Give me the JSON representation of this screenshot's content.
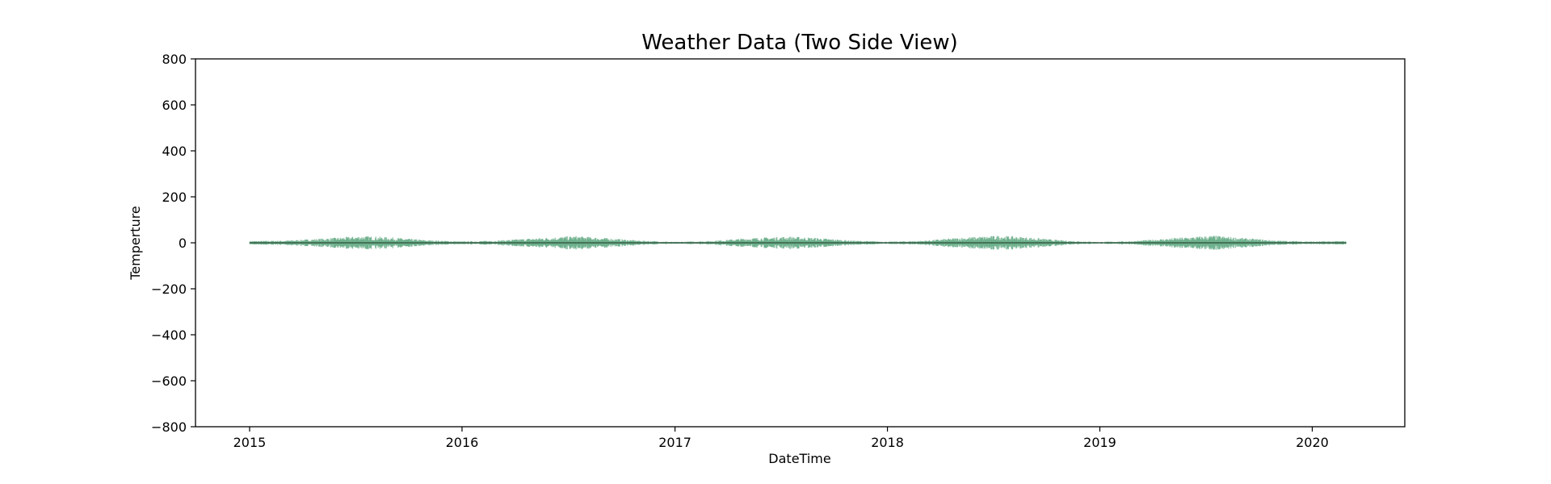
{
  "chart_data": {
    "type": "area",
    "title": "Weather Data (Two Side View)",
    "xlabel": "DateTime",
    "ylabel": "Temperture",
    "x_axis_type": "date",
    "xlim": [
      "2014-09-30",
      "2020-06-08"
    ],
    "ylim": [
      -800,
      800
    ],
    "yticks": [
      -800,
      -600,
      -400,
      -200,
      0,
      200,
      400,
      600,
      800
    ],
    "yticklabels": [
      "−800",
      "−600",
      "−400",
      "−200",
      "0",
      "200",
      "400",
      "600",
      "800"
    ],
    "xticks": [
      "2015-01-01",
      "2016-01-01",
      "2017-01-01",
      "2018-01-01",
      "2019-01-01",
      "2020-01-01"
    ],
    "xticklabels": [
      "2015",
      "2016",
      "2017",
      "2018",
      "2019",
      "2020"
    ],
    "grid": false,
    "legend": false,
    "data_range": [
      "2015-01-01",
      "2020-02-28"
    ],
    "series": [
      {
        "style": "mirrored band (positive and negative of the value)",
        "color": "#4c9e73",
        "opacity": 0.6,
        "x": [
          "2015-01-01",
          "2015-03-01",
          "2015-05-01",
          "2015-07-15",
          "2015-09-01",
          "2015-11-01",
          "2016-01-01",
          "2016-03-01",
          "2016-05-01",
          "2016-07-15",
          "2016-09-01",
          "2016-11-01",
          "2017-01-01",
          "2017-03-01",
          "2017-05-01",
          "2017-07-15",
          "2017-09-01",
          "2017-11-01",
          "2018-01-01",
          "2018-03-01",
          "2018-05-01",
          "2018-07-15",
          "2018-09-01",
          "2018-11-01",
          "2019-01-01",
          "2019-03-01",
          "2019-05-01",
          "2019-07-15",
          "2019-09-01",
          "2019-11-01",
          "2020-01-01",
          "2020-02-28"
        ],
        "y_upper": [
          8,
          10,
          18,
          30,
          24,
          12,
          6,
          10,
          20,
          30,
          22,
          10,
          4,
          8,
          20,
          28,
          22,
          10,
          5,
          9,
          22,
          32,
          24,
          10,
          4,
          8,
          20,
          32,
          22,
          10,
          6,
          8
        ]
      }
    ],
    "midline": {
      "value": 0,
      "color": "#2f4f3a"
    }
  }
}
